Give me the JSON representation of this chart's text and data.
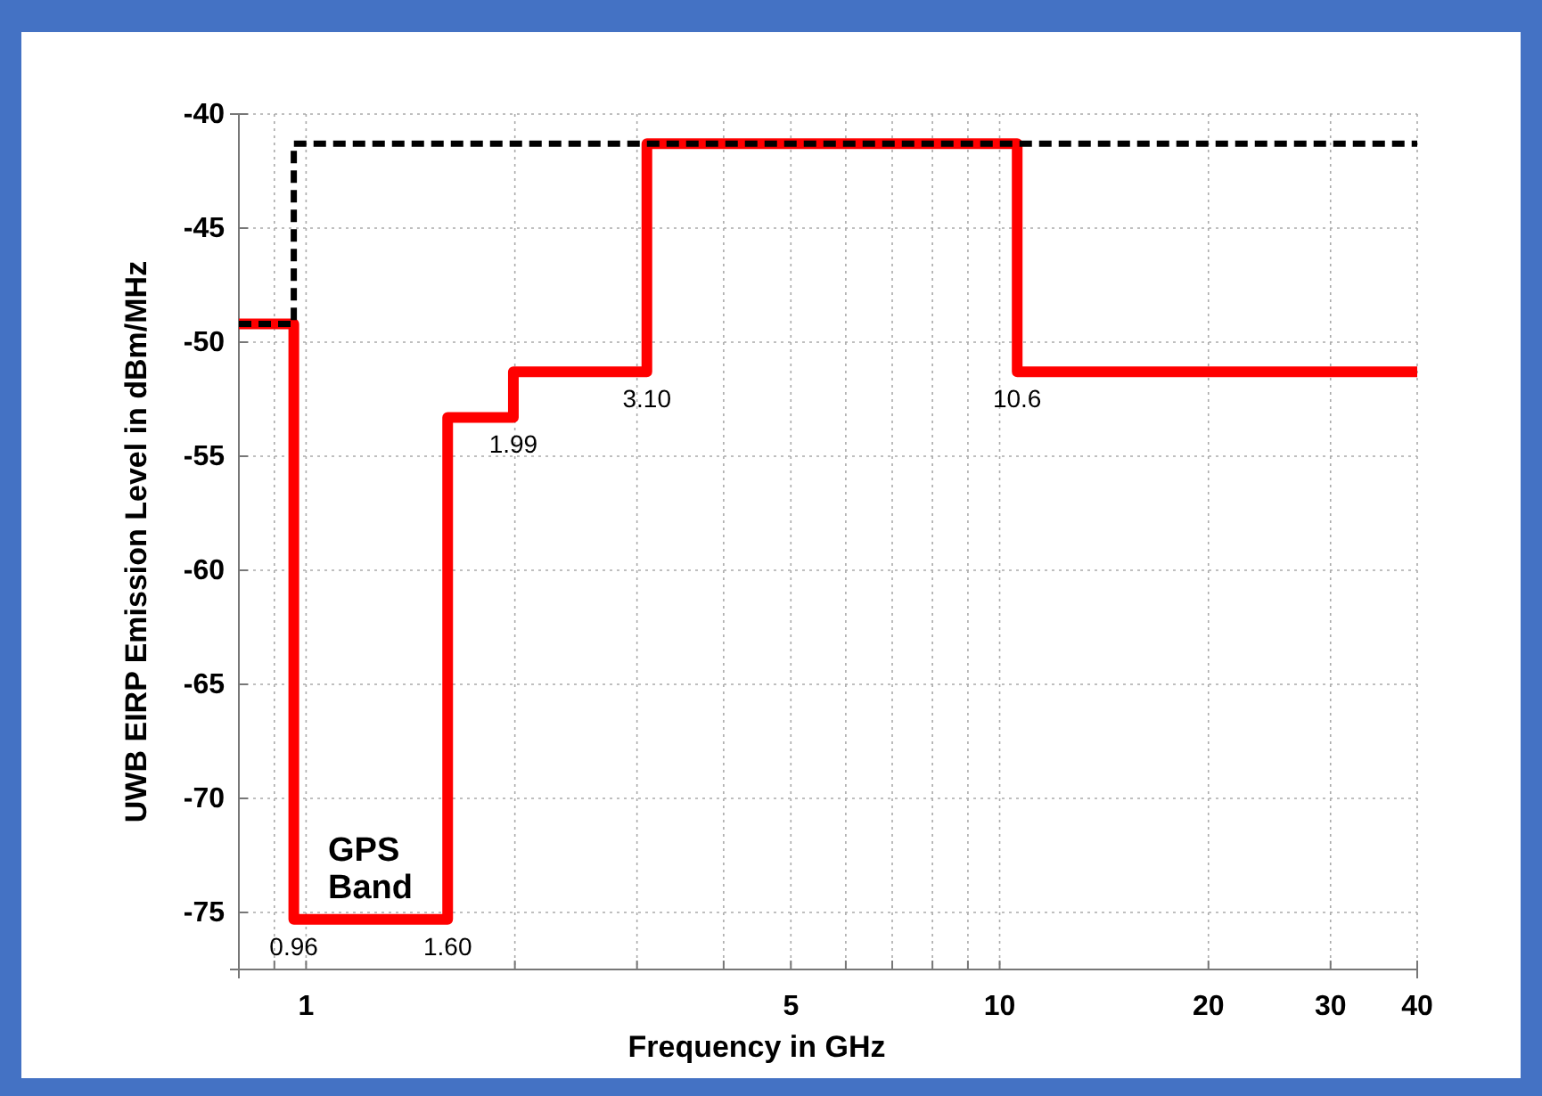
{
  "chart_data": {
    "type": "step",
    "xlabel": "Frequency in GHz",
    "ylabel": "UWB EIRP Emission Level in dBm/MHz",
    "log": "x",
    "grid": true,
    "xlim": [
      0.8,
      40
    ],
    "ylim": [
      -77.5,
      -40
    ],
    "xticks": [
      {
        "value": 0.9,
        "label": null
      },
      1,
      {
        "value": 2,
        "label": null
      },
      {
        "value": 3,
        "label": null
      },
      {
        "value": 4,
        "label": null
      },
      5,
      {
        "value": 6,
        "label": null
      },
      {
        "value": 7,
        "label": null
      },
      {
        "value": 8,
        "label": null
      },
      {
        "value": 9,
        "label": null
      },
      10,
      20,
      30,
      40
    ],
    "yticks": [
      -75,
      -70,
      -65,
      -60,
      -55,
      -50,
      -45,
      -40
    ],
    "series": [
      {
        "color": "#ff0000",
        "line_style": "solid",
        "x": [
          0.8,
          0.96,
          1.6,
          1.99,
          3.1,
          10.6,
          40
        ],
        "values": [
          -49.2,
          -75.3,
          -53.3,
          -51.3,
          -41.3,
          -51.3,
          -51.3
        ]
      },
      {
        "color": "#000000",
        "line_style": "dashed",
        "x": [
          0.8,
          0.96,
          40
        ],
        "values": [
          -49.2,
          -41.3,
          -41.3
        ]
      }
    ],
    "annotations": [
      {
        "text": "0.96",
        "x": 0.96,
        "y": -75.3
      },
      {
        "text": "1.60",
        "x": 1.6,
        "y": -75.3
      },
      {
        "text": "1.99",
        "x": 1.99,
        "y": -53.3
      },
      {
        "text": "3.10",
        "x": 3.1,
        "y": -51.3
      },
      {
        "text": "10.6",
        "x": 10.6,
        "y": -51.3
      },
      "GPS\nBand"
    ]
  }
}
